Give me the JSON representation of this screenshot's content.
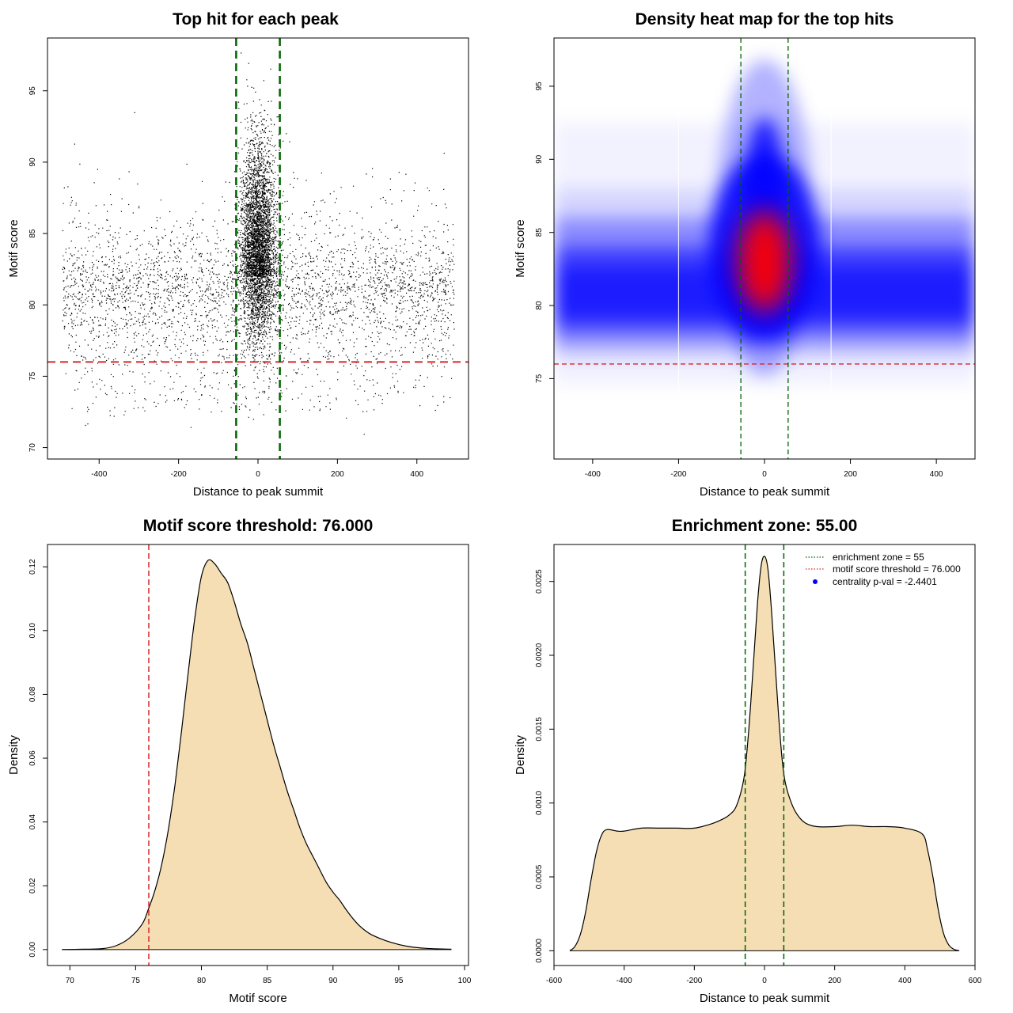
{
  "chart_data": [
    {
      "type": "scatter",
      "title": "Top hit for each peak",
      "xlabel": "Distance to peak summit",
      "ylabel": "Motif score",
      "xlim": [
        -530,
        530
      ],
      "ylim": [
        69.2,
        98.7
      ],
      "xticks": [
        -400,
        -200,
        0,
        200,
        400
      ],
      "yticks": [
        70,
        75,
        80,
        85,
        90,
        95
      ],
      "xtick_labels": [
        "-400",
        "-200",
        "0",
        "200",
        "400"
      ],
      "ytick_labels": [
        "70",
        "75",
        "80",
        "85",
        "90",
        "95"
      ],
      "threshold_line": {
        "y": 76,
        "color": "#d62728"
      },
      "zone_lines": {
        "x": [
          -55,
          55
        ],
        "color": "#006400"
      },
      "point_color": "#000000",
      "note": "Approximately 60,000 peaks; points uniformly spread over -500..500 with scores centred near 81, plus a dense spike centred at 0 reaching up to ~98."
    },
    {
      "type": "heatmap",
      "title": "Density heat map for the top hits",
      "xlabel": "Distance to peak summit",
      "ylabel": "Motif score",
      "xlim": [
        -490,
        490
      ],
      "ylim": [
        69.5,
        98.3
      ],
      "xticks": [
        -400,
        -200,
        0,
        200,
        400
      ],
      "yticks": [
        75,
        80,
        85,
        90,
        95
      ],
      "xtick_labels": [
        "-400",
        "-200",
        "0",
        "200",
        "400"
      ],
      "ytick_labels": [
        "75",
        "80",
        "85",
        "90",
        "95"
      ],
      "threshold_line": {
        "y": 76,
        "color": "#d62728"
      },
      "zone_lines": {
        "x": [
          -55,
          55
        ],
        "color": "#006400"
      },
      "colors": {
        "low": "#ffffff",
        "mid": "#0000ff",
        "high": "#ff0000"
      }
    },
    {
      "type": "area",
      "title": "Motif score threshold: 76.000",
      "xlabel": "Motif score",
      "ylabel": "Density",
      "xlim": [
        68.3,
        100.3
      ],
      "ylim": [
        -0.005,
        0.127
      ],
      "xticks": [
        70,
        75,
        80,
        85,
        90,
        95,
        100
      ],
      "yticks": [
        0,
        0.02,
        0.04,
        0.06,
        0.08,
        0.1,
        0.12
      ],
      "xtick_labels": [
        "70",
        "75",
        "80",
        "85",
        "90",
        "95",
        "100"
      ],
      "ytick_labels": [
        "0.00",
        "0.02",
        "0.04",
        "0.06",
        "0.08",
        "0.10",
        "0.12"
      ],
      "fill": "#f5deb3",
      "threshold_line": {
        "x": 76,
        "color": "#d62728"
      },
      "x": [
        69.4,
        71,
        72.5,
        73.5,
        74.5,
        75.5,
        76,
        76.5,
        77,
        77.5,
        78,
        78.5,
        79,
        79.5,
        80,
        80.5,
        81,
        81.5,
        82,
        82.5,
        83,
        83.5,
        84,
        84.5,
        85,
        85.5,
        86,
        86.5,
        87,
        87.5,
        88,
        88.5,
        89,
        89.5,
        90,
        90.5,
        91,
        91.5,
        92,
        92.5,
        93,
        94,
        95,
        96,
        97,
        98,
        99
      ],
      "y": [
        0.0,
        0.0001,
        0.0003,
        0.0012,
        0.0035,
        0.008,
        0.013,
        0.019,
        0.027,
        0.038,
        0.052,
        0.069,
        0.087,
        0.104,
        0.117,
        0.122,
        0.121,
        0.118,
        0.115,
        0.109,
        0.102,
        0.096,
        0.088,
        0.08,
        0.072,
        0.064,
        0.057,
        0.05,
        0.044,
        0.038,
        0.033,
        0.029,
        0.025,
        0.021,
        0.018,
        0.0155,
        0.0125,
        0.0098,
        0.0075,
        0.0058,
        0.0045,
        0.0028,
        0.0016,
        0.0008,
        0.0004,
        0.0002,
        0.0001
      ]
    },
    {
      "type": "area",
      "title": "Enrichment zone: 55.00",
      "xlabel": "Distance to peak summit",
      "ylabel": "Density",
      "xlim": [
        -600,
        600
      ],
      "ylim": [
        -0.0001,
        0.00275
      ],
      "xticks": [
        -600,
        -400,
        -200,
        0,
        200,
        400,
        600
      ],
      "yticks": [
        0,
        0.0005,
        0.001,
        0.0015,
        0.002,
        0.0025
      ],
      "xtick_labels": [
        "-600",
        "-400",
        "-200",
        "0",
        "200",
        "400",
        "600"
      ],
      "ytick_labels": [
        "0.0000",
        "0.0005",
        "0.0010",
        "0.0015",
        "0.0020",
        "0.0025"
      ],
      "fill": "#f5deb3",
      "zone_lines": {
        "x": [
          -55,
          55
        ],
        "color": "#006400"
      },
      "legend": [
        {
          "label": "enrichment zone = 55",
          "color": "#006400",
          "kind": "dotted-line"
        },
        {
          "label": "motif score threshold = 76.000",
          "color": "#d62728",
          "kind": "dotted-line"
        },
        {
          "label": "centrality p-val = -2.4401",
          "color": "#0000ff",
          "kind": "point"
        }
      ],
      "legend_position": "top-right",
      "x": [
        -555,
        -540,
        -525,
        -510,
        -495,
        -480,
        -465,
        -450,
        -420,
        -400,
        -350,
        -300,
        -250,
        -200,
        -150,
        -120,
        -100,
        -80,
        -60,
        -50,
        -40,
        -30,
        -20,
        -10,
        0,
        10,
        20,
        30,
        40,
        50,
        60,
        80,
        100,
        120,
        150,
        200,
        250,
        300,
        350,
        400,
        450,
        465,
        480,
        495,
        510,
        525,
        540,
        555
      ],
      "y": [
        0.0,
        3e-05,
        0.00011,
        0.00026,
        0.00047,
        0.00066,
        0.00078,
        0.00082,
        0.00081,
        0.00081,
        0.00083,
        0.00083,
        0.00083,
        0.00083,
        0.00086,
        0.00089,
        0.00092,
        0.00098,
        0.00115,
        0.00135,
        0.00165,
        0.002,
        0.00235,
        0.0026,
        0.00267,
        0.00258,
        0.0023,
        0.00195,
        0.0016,
        0.0013,
        0.00113,
        0.00098,
        0.0009,
        0.00086,
        0.00084,
        0.00084,
        0.00085,
        0.00084,
        0.00084,
        0.00083,
        0.00079,
        0.00068,
        0.0005,
        0.00028,
        0.00012,
        4e-05,
        1e-05,
        0.0
      ]
    }
  ]
}
